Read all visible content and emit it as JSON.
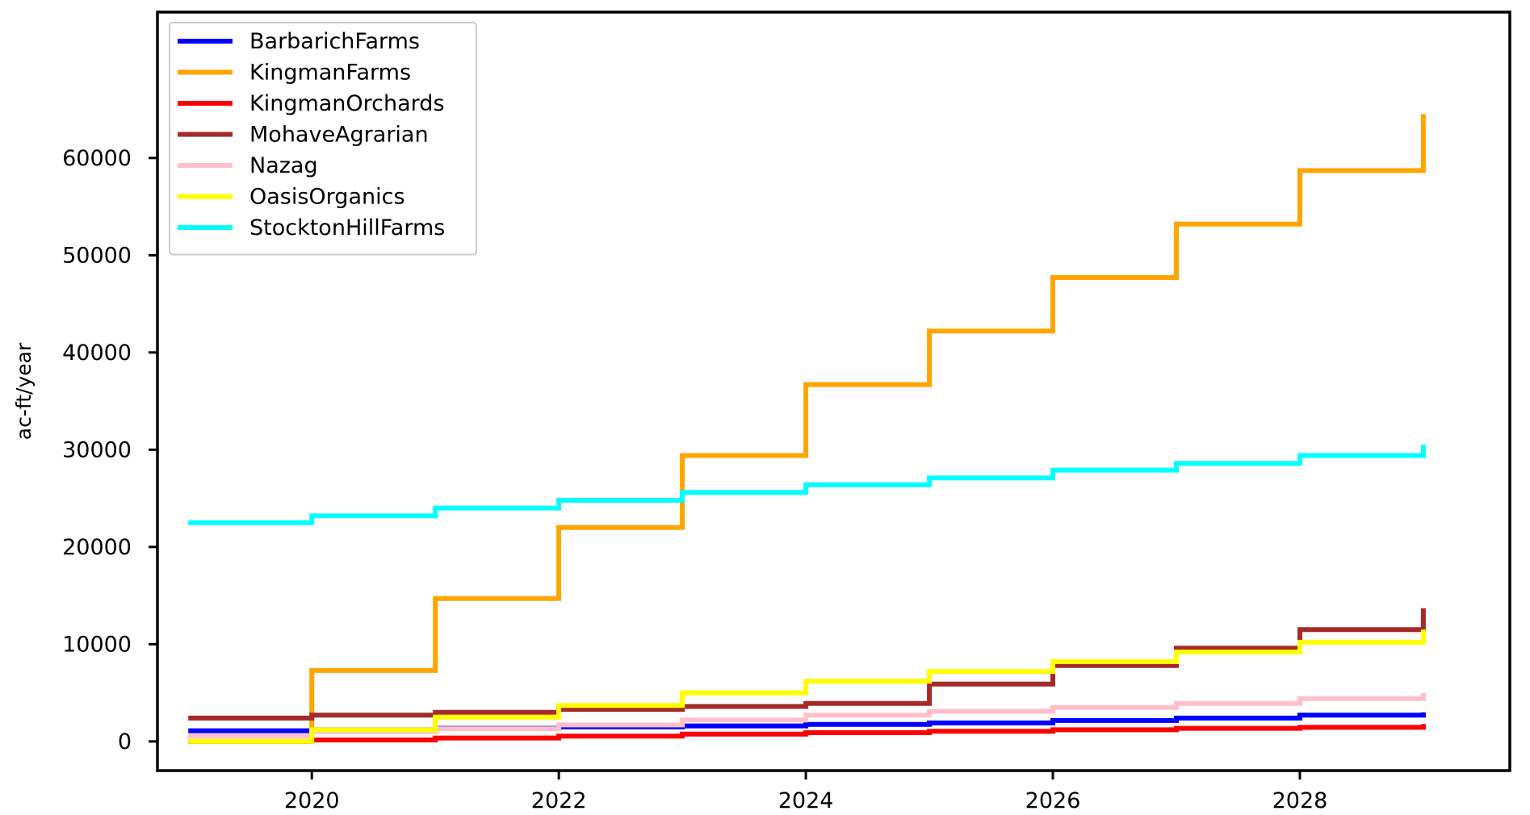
{
  "chart_data": {
    "type": "line",
    "step": "post",
    "xlabel": "",
    "ylabel": "ac-ft/year",
    "xlim": [
      2018.75,
      2029.7
    ],
    "ylim": [
      -3000,
      75000
    ],
    "xticks": [
      2020,
      2022,
      2024,
      2026,
      2028
    ],
    "yticks": [
      0,
      10000,
      20000,
      30000,
      40000,
      50000,
      60000
    ],
    "legend_position": "top-left",
    "x": [
      2019,
      2020,
      2021,
      2022,
      2023,
      2024,
      2025,
      2026,
      2027,
      2028,
      2029
    ],
    "series": [
      {
        "name": "BarbarichFarms",
        "color": "#0000ff",
        "values": [
          1100,
          1200,
          1350,
          1500,
          1600,
          1750,
          1900,
          2150,
          2400,
          2700,
          3000
        ]
      },
      {
        "name": "KingmanFarms",
        "color": "#ffa500",
        "values": [
          0,
          7300,
          14700,
          22000,
          29400,
          36700,
          42200,
          47700,
          53200,
          58700,
          64500
        ]
      },
      {
        "name": "KingmanOrchards",
        "color": "#ff0000",
        "values": [
          0,
          150,
          350,
          550,
          750,
          900,
          1050,
          1200,
          1350,
          1450,
          1800
        ]
      },
      {
        "name": "MohaveAgrarian",
        "color": "#a52a2a",
        "values": [
          2400,
          2700,
          3000,
          3300,
          3600,
          3900,
          5900,
          7800,
          9600,
          11500,
          13700
        ]
      },
      {
        "name": "Nazag",
        "color": "#ffc0cb",
        "values": [
          600,
          1000,
          1300,
          1700,
          2200,
          2700,
          3100,
          3500,
          3900,
          4400,
          5000
        ]
      },
      {
        "name": "OasisOrganics",
        "color": "#ffff00",
        "values": [
          0,
          1200,
          2500,
          3700,
          5000,
          6200,
          7200,
          8200,
          9200,
          10200,
          11500
        ]
      },
      {
        "name": "StocktonHillFarms",
        "color": "#00ffff",
        "values": [
          22500,
          23200,
          24000,
          24800,
          25600,
          26400,
          27100,
          27900,
          28600,
          29400,
          30500
        ]
      }
    ]
  }
}
